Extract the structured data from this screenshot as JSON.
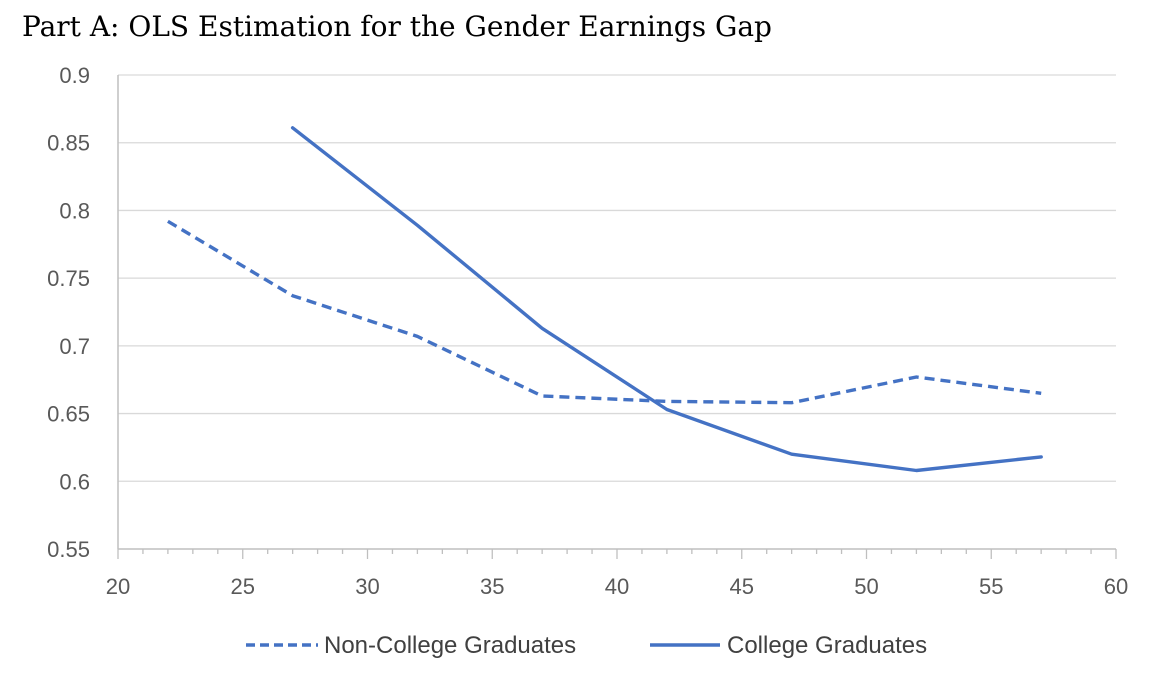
{
  "chart_data": {
    "type": "line",
    "title": "Part A: OLS Estimation for the Gender Earnings Gap",
    "xlim": [
      20,
      60
    ],
    "ylim": [
      0.55,
      0.9
    ],
    "x_ticks": [
      "20",
      "25",
      "30",
      "35",
      "40",
      "45",
      "50",
      "55",
      "60"
    ],
    "y_ticks": [
      "0.55",
      "0.6",
      "0.65",
      "0.7",
      "0.75",
      "0.8",
      "0.85",
      "0.9"
    ],
    "grid": true,
    "legend_position": "bottom",
    "series": [
      {
        "name": "Non-College Graduates",
        "style": "dashed",
        "color": "#4472C4",
        "points": [
          [
            22,
            0.792
          ],
          [
            27,
            0.737
          ],
          [
            32,
            0.707
          ],
          [
            37,
            0.663
          ],
          [
            42,
            0.659
          ],
          [
            47,
            0.658
          ],
          [
            52,
            0.677
          ],
          [
            57,
            0.665
          ]
        ]
      },
      {
        "name": "College Graduates",
        "style": "solid",
        "color": "#4472C4",
        "points": [
          [
            27,
            0.861
          ],
          [
            32,
            0.789
          ],
          [
            37,
            0.713
          ],
          [
            42,
            0.653
          ],
          [
            47,
            0.62
          ],
          [
            52,
            0.608
          ],
          [
            57,
            0.618
          ]
        ]
      }
    ]
  }
}
